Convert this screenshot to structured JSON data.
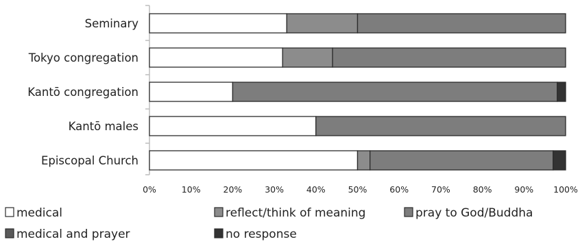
{
  "chart_data": {
    "type": "bar",
    "orientation": "horizontal",
    "stacked": true,
    "percent": true,
    "categories": [
      "Seminary",
      "Tokyo congregation",
      "Kantō congregation",
      "Kantō males",
      "Episcopal Church"
    ],
    "series": [
      {
        "name": "medical",
        "color": "#ffffff",
        "values": [
          33,
          32,
          20,
          40,
          50
        ]
      },
      {
        "name": "reflect/think of meaning",
        "color": "#8c8c8c",
        "values": [
          17,
          12,
          0,
          0,
          3
        ]
      },
      {
        "name": "pray to God/Buddha",
        "color": "#7d7d7d",
        "values": [
          50,
          56,
          78,
          60,
          44
        ]
      },
      {
        "name": "medical and prayer",
        "color": "#5a5a5a",
        "values": [
          0,
          0,
          0,
          0,
          0
        ]
      },
      {
        "name": "no response",
        "color": "#333333",
        "values": [
          0,
          0,
          2,
          0,
          3
        ]
      }
    ],
    "xlim": [
      0,
      100
    ],
    "x_ticks": [
      "0%",
      "10%",
      "20%",
      "30%",
      "40%",
      "50%",
      "60%",
      "70%",
      "80%",
      "90%",
      "100%"
    ],
    "grid": false,
    "legend_position": "bottom",
    "title": "",
    "xlabel": "",
    "ylabel": ""
  }
}
